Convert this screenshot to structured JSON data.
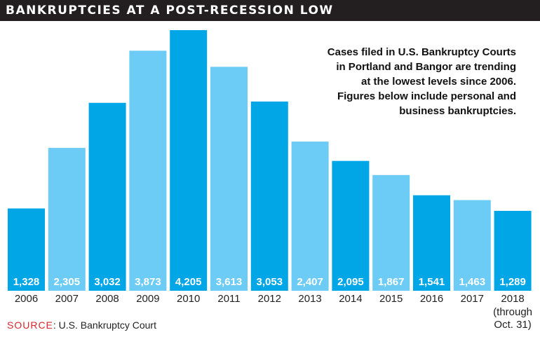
{
  "header": {
    "title": "BANKRUPTCIES AT A POST-RECESSION LOW"
  },
  "note": {
    "lines": [
      "Cases filed in U.S. Bankruptcy Courts",
      "in Portland and Bangor are trending",
      "at the lowest levels since 2006.",
      "Figures below include personal and",
      "business bankruptcies."
    ]
  },
  "source": {
    "label": "SOURCE",
    "separator": ":",
    "text": " U.S. Bankruptcy Court"
  },
  "chart_data": {
    "type": "bar",
    "title": "BANKRUPTCIES AT A POST-RECESSION LOW",
    "xlabel": "",
    "ylabel": "",
    "ylim": [
      0,
      4205
    ],
    "grid": false,
    "categories": [
      "2006",
      "2007",
      "2008",
      "2009",
      "2010",
      "2011",
      "2012",
      "2013",
      "2014",
      "2015",
      "2016",
      "2017",
      "2018"
    ],
    "category_sublabels": {
      "2018": [
        "(through",
        "Oct. 31)"
      ]
    },
    "values": [
      1328,
      2305,
      3032,
      3873,
      4205,
      3613,
      3053,
      2407,
      2095,
      1867,
      1541,
      1463,
      1289
    ],
    "value_labels": [
      "1,328",
      "2,305",
      "3,032",
      "3,873",
      "4,205",
      "3,613",
      "3,053",
      "2,407",
      "2,095",
      "1,867",
      "1,541",
      "1,463",
      "1,289"
    ],
    "colors": {
      "dark": "#00a6e6",
      "light": "#6dccf5"
    }
  }
}
